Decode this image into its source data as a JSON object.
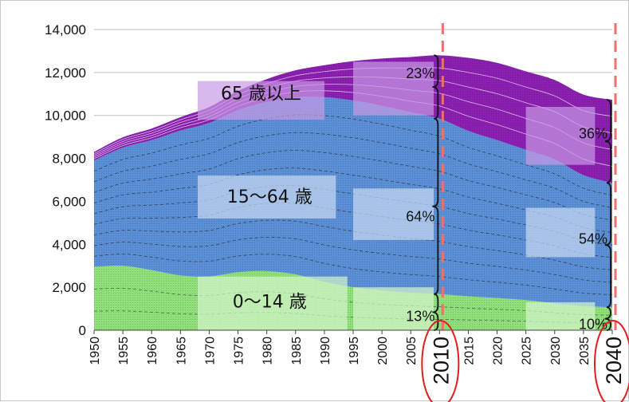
{
  "chart_data": {
    "type": "area",
    "stacked": true,
    "x": [
      1950,
      1955,
      1960,
      1965,
      1970,
      1975,
      1980,
      1985,
      1990,
      1995,
      2000,
      2005,
      2010,
      2015,
      2020,
      2025,
      2030,
      2035,
      2040
    ],
    "x_tick_labels": [
      "1950",
      "1955",
      "1960",
      "1965",
      "1970",
      "1975",
      "1980",
      "1985",
      "1990",
      "1995",
      "2000",
      "2005",
      "2010",
      "2015",
      "2020",
      "2025",
      "2030",
      "2035",
      "2040"
    ],
    "highlighted_years": [
      "2010",
      "2040"
    ],
    "ylim": [
      0,
      14000
    ],
    "y_ticks": [
      0,
      2000,
      4000,
      6000,
      8000,
      10000,
      12000,
      14000
    ],
    "y_tick_labels": [
      "0",
      "2,000",
      "4,000",
      "6,000",
      "8,000",
      "10,000",
      "12,000",
      "14,000"
    ],
    "grid": "horizontal",
    "series": [
      {
        "name": "0～14 歳",
        "color": "#8fe07a",
        "values": [
          2950,
          3000,
          2800,
          2550,
          2500,
          2700,
          2750,
          2600,
          2250,
          2000,
          1850,
          1750,
          1680,
          1580,
          1500,
          1400,
          1250,
          1120,
          1070
        ]
      },
      {
        "name": "15～64 歳",
        "color": "#5b8fd6",
        "values": [
          4950,
          5500,
          6050,
          6750,
          7150,
          7550,
          7880,
          8250,
          8600,
          8700,
          8600,
          8400,
          8170,
          7700,
          7350,
          7000,
          6700,
          6100,
          5790
        ]
      },
      {
        "name": "65 歳以上",
        "color": "#8a1fb0",
        "values": [
          400,
          480,
          540,
          620,
          740,
          890,
          1060,
          1250,
          1490,
          1830,
          2200,
          2570,
          2950,
          3400,
          3600,
          3650,
          3700,
          3750,
          3870
        ]
      }
    ],
    "annotations": [
      {
        "text": "23%",
        "year": 2010,
        "group": "65 歳以上"
      },
      {
        "text": "64%",
        "year": 2010,
        "group": "15～64 歳"
      },
      {
        "text": "13%",
        "year": 2010,
        "group": "0～14 歳"
      },
      {
        "text": "36%",
        "year": 2040,
        "group": "65 歳以上"
      },
      {
        "text": "54%",
        "year": 2040,
        "group": "15～64 歳"
      },
      {
        "text": "10%",
        "year": 2040,
        "group": "0～14 歳"
      }
    ],
    "colors": {
      "elderly": "#8a1fb0",
      "elderly_light": "#c79ae6",
      "working": "#5b8fd6",
      "working_light": "#c9daf2",
      "young": "#8fe07a",
      "young_light": "#d6f5cc",
      "marker_line": "#f07070",
      "circle": "#e02020"
    }
  }
}
